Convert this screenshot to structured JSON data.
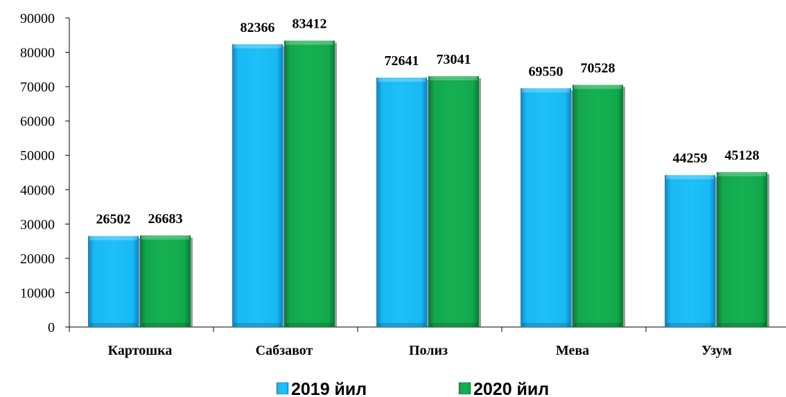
{
  "chart_data": {
    "type": "bar",
    "categories": [
      "Картошка",
      "Сабзавот",
      "Полиз",
      "Мева",
      "Узум"
    ],
    "series": [
      {
        "name": "2019 йил",
        "values": [
          26502,
          82366,
          72641,
          69550,
          44259
        ],
        "color": "#14B3EE"
      },
      {
        "name": "2020 йил",
        "values": [
          26683,
          83412,
          73041,
          70528,
          45128
        ],
        "color": "#11A84C"
      }
    ],
    "yticks": [
      "0",
      "10000",
      "20000",
      "30000",
      "40000",
      "50000",
      "60000",
      "70000",
      "80000",
      "90000"
    ],
    "ylim": [
      0,
      90000
    ],
    "title": "",
    "xlabel": "",
    "ylabel": "",
    "grid": false,
    "legend_position": "bottom"
  }
}
